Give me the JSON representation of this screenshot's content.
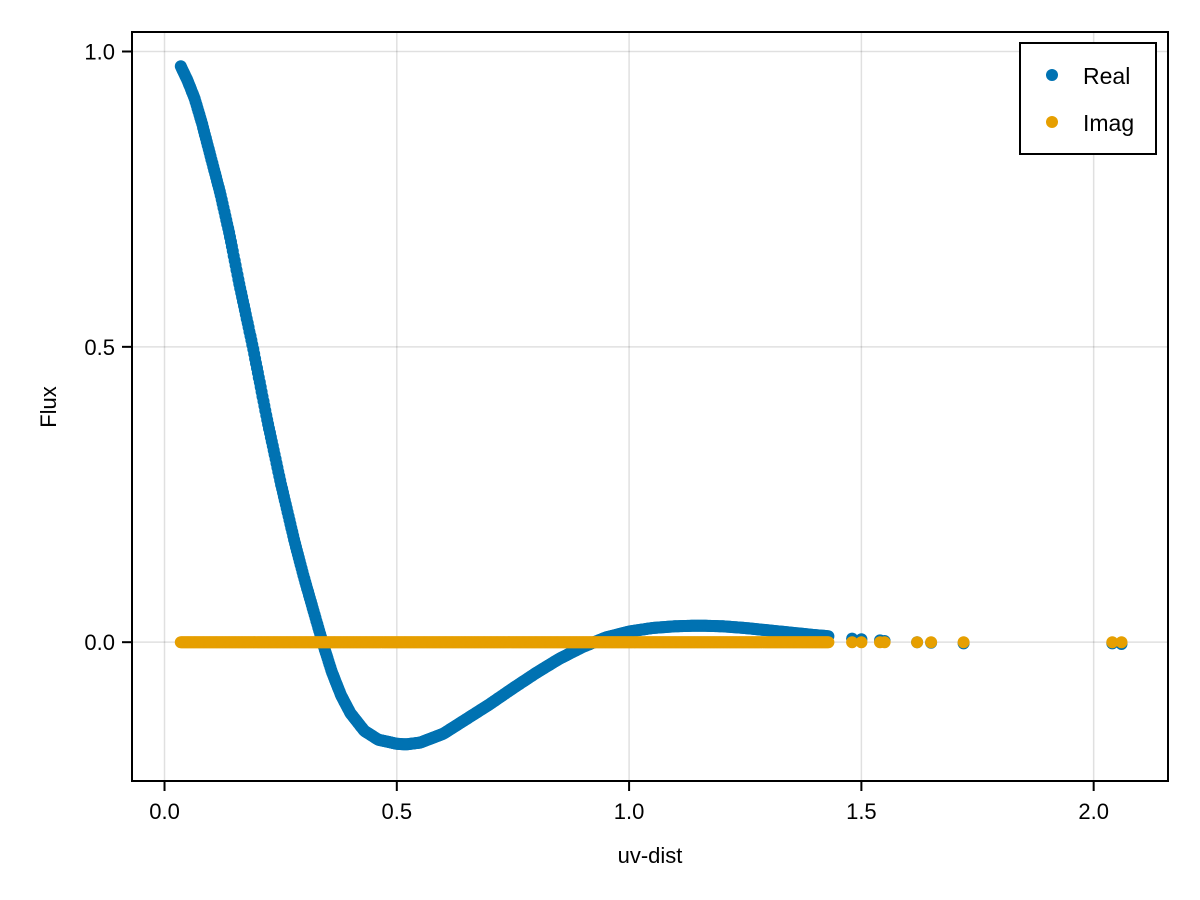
{
  "chart_data": {
    "type": "scatter",
    "title": "",
    "xlabel": "uv-dist",
    "ylabel": "Flux",
    "xlim": [
      -0.07,
      2.16
    ],
    "ylim": [
      -0.235,
      1.033
    ],
    "grid": true,
    "legend_position": "top-right",
    "x_ticks": [
      0.0,
      0.5,
      1.0,
      1.5,
      2.0
    ],
    "x_tick_labels": [
      "0.0",
      "0.5",
      "1.0",
      "1.5",
      "2.0"
    ],
    "y_ticks": [
      0.0,
      0.5,
      1.0
    ],
    "y_tick_labels": [
      "0.0",
      "0.5",
      "1.0"
    ],
    "series": [
      {
        "name": "Real",
        "color": "#0072b2",
        "x": [
          0.035,
          0.05,
          0.065,
          0.08,
          0.1,
          0.12,
          0.14,
          0.16,
          0.19,
          0.22,
          0.25,
          0.28,
          0.3,
          0.32,
          0.34,
          0.36,
          0.38,
          0.4,
          0.43,
          0.46,
          0.5,
          0.52,
          0.55,
          0.6,
          0.65,
          0.7,
          0.75,
          0.8,
          0.85,
          0.9,
          0.95,
          1.0,
          1.05,
          1.1,
          1.15,
          1.2,
          1.25,
          1.3,
          1.35,
          1.4,
          1.43,
          1.48,
          1.5,
          1.54,
          1.55,
          1.62,
          1.65,
          1.72,
          2.04,
          2.06
        ],
        "y": [
          0.975,
          0.95,
          0.92,
          0.88,
          0.82,
          0.76,
          0.69,
          0.61,
          0.5,
          0.38,
          0.27,
          0.17,
          0.11,
          0.055,
          0.0,
          -0.05,
          -0.09,
          -0.12,
          -0.15,
          -0.165,
          -0.172,
          -0.173,
          -0.17,
          -0.155,
          -0.13,
          -0.105,
          -0.078,
          -0.052,
          -0.028,
          -0.008,
          0.008,
          0.018,
          0.024,
          0.027,
          0.028,
          0.027,
          0.024,
          0.02,
          0.016,
          0.012,
          0.01,
          0.006,
          0.005,
          0.003,
          0.002,
          0.0,
          -0.001,
          -0.002,
          -0.002,
          -0.003
        ]
      },
      {
        "name": "Imag",
        "color": "#e69f00",
        "x": [
          0.035,
          0.1,
          0.2,
          0.3,
          0.4,
          0.5,
          0.6,
          0.7,
          0.8,
          0.9,
          1.0,
          1.1,
          1.2,
          1.25,
          1.3,
          1.35,
          1.4,
          1.43,
          1.48,
          1.5,
          1.54,
          1.55,
          1.62,
          1.65,
          1.72,
          2.04,
          2.06
        ],
        "y": [
          0.0,
          0.0,
          0.0,
          0.0,
          0.0,
          0.0,
          0.0,
          0.0,
          0.0,
          0.0,
          0.0,
          0.0,
          0.0,
          0.0,
          0.0,
          0.0,
          0.0,
          0.0,
          0.0,
          0.0,
          0.0,
          0.0,
          0.0,
          0.0,
          0.0,
          0.0,
          0.0
        ]
      }
    ]
  },
  "legend": {
    "items": [
      {
        "label": "Real",
        "color": "#0072b2"
      },
      {
        "label": "Imag",
        "color": "#e69f00"
      }
    ]
  }
}
